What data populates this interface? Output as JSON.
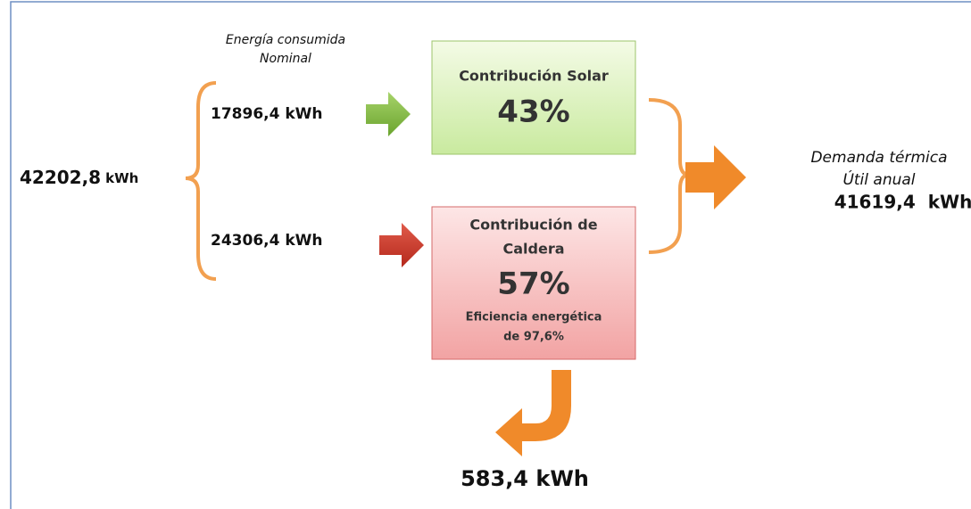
{
  "input": {
    "value": "42202,8",
    "unit": "kWh"
  },
  "header": [
    "Energía consumida",
    "Nominal"
  ],
  "solar_input": "17896,4 kWh",
  "boiler_input": "24306,4 kWh",
  "solar_box": {
    "title": "Contribución Solar",
    "percent": "43%"
  },
  "boiler_box": {
    "title": [
      "Contribución de",
      "Caldera"
    ],
    "percent": "57%",
    "note": [
      "Eficiencia energética",
      "de 97,6%"
    ]
  },
  "output": {
    "label": [
      "Demanda térmica",
      "Útil anual"
    ],
    "value": "41619,4  kWh"
  },
  "loss": "583,4 kWh"
}
